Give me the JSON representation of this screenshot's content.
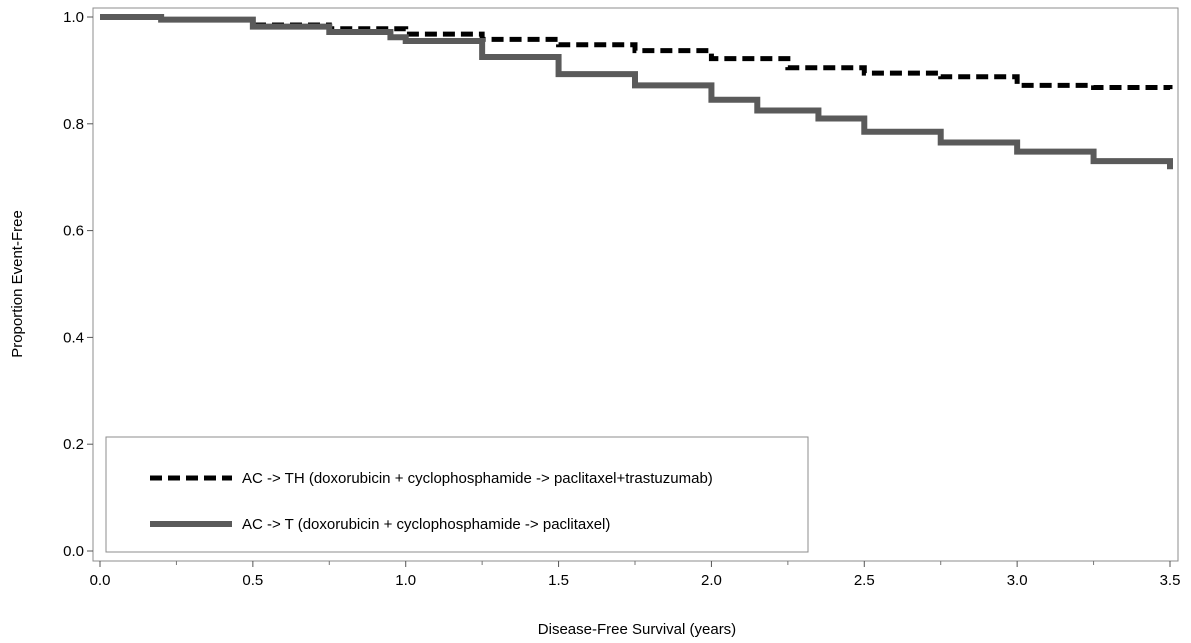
{
  "chart_data": {
    "type": "line",
    "title": "",
    "xlabel": "Disease-Free Survival (years)",
    "ylabel": "Proportion Event-Free",
    "xlim": [
      0.0,
      3.5
    ],
    "ylim": [
      0.0,
      1.0
    ],
    "x_ticks": [
      "0.0",
      "0.5",
      "1.0",
      "1.5",
      "2.0",
      "2.5",
      "3.0",
      "3.5"
    ],
    "y_ticks": [
      "0.0",
      "0.2",
      "0.4",
      "0.6",
      "0.8",
      "1.0"
    ],
    "grid": false,
    "legend_position": "bottom-left",
    "series": [
      {
        "name": "AC -> TH (doxorubicin + cyclophosphamide -> paclitaxel+trastuzumab)",
        "style": "dashed",
        "color": "#000000",
        "x": [
          0.0,
          0.2,
          0.5,
          0.75,
          1.0,
          1.25,
          1.5,
          1.75,
          2.0,
          2.25,
          2.5,
          2.75,
          3.0,
          3.25,
          3.5
        ],
        "y": [
          1.0,
          0.995,
          0.985,
          0.978,
          0.968,
          0.958,
          0.948,
          0.937,
          0.922,
          0.905,
          0.895,
          0.888,
          0.872,
          0.868,
          0.865
        ]
      },
      {
        "name": "AC -> T (doxorubicin + cyclophosphamide -> paclitaxel)",
        "style": "solid",
        "color": "#5a5a5a",
        "x": [
          0.0,
          0.2,
          0.5,
          0.75,
          0.95,
          1.0,
          1.25,
          1.5,
          1.75,
          2.0,
          2.15,
          2.35,
          2.5,
          2.75,
          3.0,
          3.25,
          3.5
        ],
        "y": [
          1.0,
          0.995,
          0.982,
          0.972,
          0.962,
          0.955,
          0.925,
          0.893,
          0.872,
          0.845,
          0.825,
          0.81,
          0.785,
          0.765,
          0.748,
          0.73,
          0.715
        ]
      }
    ]
  }
}
